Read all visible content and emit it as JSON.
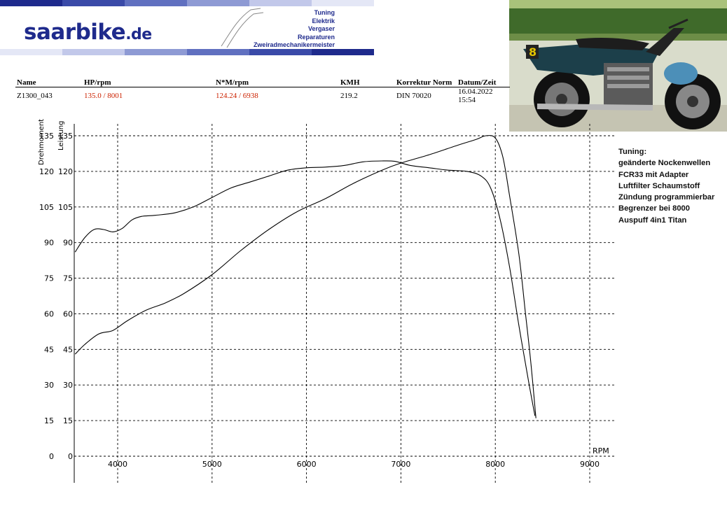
{
  "header": {
    "logo": "saarbike",
    "logo_domain": ".de",
    "services": [
      "Tuning",
      "Elektrik",
      "Vergaser",
      "Reparaturen",
      "Zweiradmechanikermeister"
    ],
    "bar_colors": [
      "#1e2a8c",
      "#3a4aa8",
      "#6070c0",
      "#8e9ad4",
      "#c2c8ea",
      "#e4e7f6"
    ]
  },
  "table": {
    "headers": [
      "Name",
      "HP/rpm",
      "N*M/rpm",
      "KMH",
      "Korrektur Norm",
      "Datum/Zeit"
    ],
    "row": [
      "Z1300_043",
      "135.0 / 8001",
      "124.24 / 6938",
      "219.2",
      "DIN 70020",
      "16.04.2022 15:54"
    ]
  },
  "tuning_notes": {
    "title": "Tuning:",
    "lines": [
      "geänderte Nockenwellen",
      "FCR33 mit Adapter",
      "Luftfilter Schaumstoff",
      "Zündung programmierbar",
      "Begrenzer bei 8000",
      "Auspuff 4in1 Titan"
    ]
  },
  "chart_data": {
    "type": "line",
    "xlabel": "RPM",
    "ylabel_left": "Drehmoment",
    "ylabel_right": "Leistung",
    "xlim": [
      3550,
      9300
    ],
    "ylim": [
      0,
      137
    ],
    "x_ticks": [
      4000,
      5000,
      6000,
      7000,
      8000,
      9000
    ],
    "x_tick_labels": [
      "4000",
      "5000",
      "6000",
      "7000",
      "8000",
      "9000"
    ],
    "y_ticks": [
      0,
      15,
      30,
      45,
      60,
      75,
      90,
      105,
      120,
      135
    ],
    "y_tick_labels": [
      "0",
      "15",
      "30",
      "45",
      "60",
      "75",
      "90",
      "105",
      "120",
      "135"
    ],
    "grid": true,
    "series": [
      {
        "values_x": [
          3550,
          3650,
          3750,
          3850,
          3950,
          4050,
          4150,
          4250,
          4400,
          4600,
          4800,
          5000,
          5200,
          5400,
          5600,
          5800,
          6000,
          6200,
          6400,
          6600,
          6800,
          6938,
          7100,
          7300,
          7500,
          7700,
          7850,
          7950,
          8050,
          8150,
          8250,
          8350,
          8420
        ],
        "values_y": [
          86,
          92,
          95.5,
          95.5,
          94.5,
          96,
          99.5,
          101,
          101.5,
          102.5,
          105,
          109,
          113,
          115.5,
          118,
          120.5,
          121.5,
          121.8,
          122.5,
          124,
          124.4,
          124.2,
          122.5,
          121.5,
          120.5,
          120,
          118,
          113,
          100,
          80,
          55,
          32,
          17
        ]
      },
      {
        "values_x": [
          3550,
          3650,
          3800,
          3950,
          4100,
          4300,
          4500,
          4700,
          5000,
          5300,
          5600,
          5900,
          6200,
          6500,
          6800,
          7000,
          7300,
          7600,
          7800,
          7900,
          8001,
          8080,
          8150,
          8250,
          8320,
          8380,
          8430
        ],
        "values_y": [
          43,
          47,
          51.5,
          53,
          57,
          61.5,
          64.5,
          68.5,
          76.5,
          86.5,
          95.5,
          103,
          108.5,
          115,
          120.5,
          123.5,
          127,
          131,
          133.5,
          135,
          134,
          126,
          110,
          85,
          60,
          38,
          16
        ]
      }
    ]
  }
}
